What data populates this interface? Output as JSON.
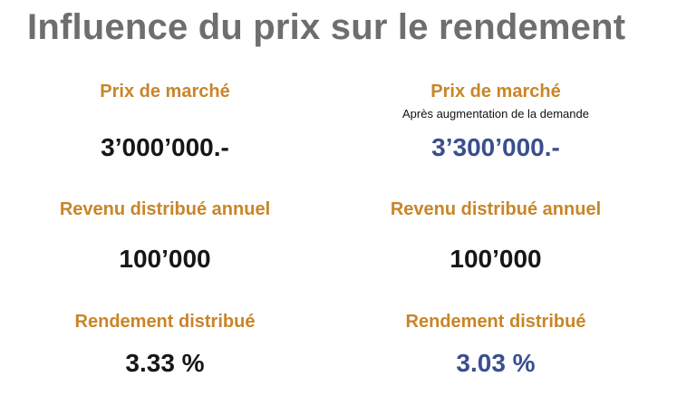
{
  "title": "Influence du prix sur le rendement",
  "left": {
    "price_label": "Prix de marché",
    "price_value": "3’000’000.-",
    "income_label": "Revenu distribué annuel",
    "income_value": "100’000",
    "yield_label": "Rendement distribué",
    "yield_value": "3.33 %"
  },
  "right": {
    "price_label": "Prix de marché",
    "price_sublabel": "Après augmentation de la demande",
    "price_value": "3’300’000.-",
    "income_label": "Revenu distribué annuel",
    "income_value": "100’000",
    "yield_label": "Rendement distribué",
    "yield_value": "3.03 %"
  },
  "colors": {
    "title": "#6e6e6e",
    "label": "#c98528",
    "value": "#161616",
    "highlight": "#3a4f8f"
  }
}
